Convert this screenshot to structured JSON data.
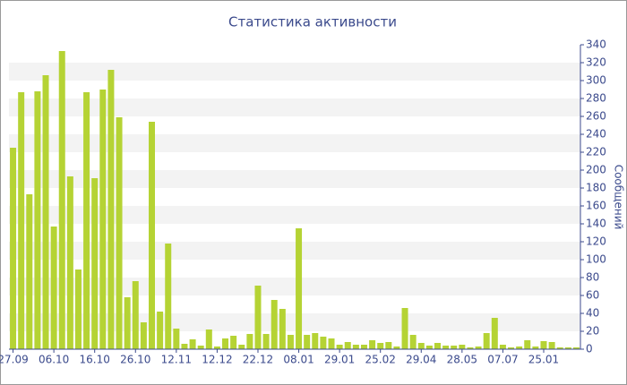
{
  "chart_data": {
    "type": "bar",
    "title": "Статистика активности",
    "y_label": "Сообщений",
    "categories": [
      "27.09",
      null,
      null,
      null,
      null,
      "06.10",
      null,
      null,
      null,
      null,
      "16.10",
      null,
      null,
      null,
      null,
      "26.10",
      null,
      null,
      null,
      null,
      "12.11",
      null,
      null,
      null,
      null,
      "12.12",
      null,
      null,
      null,
      null,
      "22.12",
      null,
      null,
      null,
      null,
      "08.01",
      null,
      null,
      null,
      null,
      "29.01",
      null,
      null,
      null,
      null,
      "25.02",
      null,
      null,
      null,
      null,
      "29.04",
      null,
      null,
      null,
      null,
      "28.05",
      null,
      null,
      null,
      null,
      "07.07",
      null,
      null,
      null,
      null,
      "25.01",
      null,
      null,
      null,
      null
    ],
    "values": [
      225,
      287,
      173,
      288,
      306,
      137,
      333,
      193,
      89,
      287,
      191,
      290,
      312,
      259,
      58,
      76,
      30,
      254,
      42,
      118,
      23,
      6,
      11,
      4,
      22,
      3,
      12,
      15,
      5,
      17,
      71,
      17,
      55,
      45,
      16,
      135,
      16,
      18,
      14,
      12,
      5,
      8,
      5,
      5,
      10,
      7,
      8,
      3,
      46,
      16,
      7,
      4,
      7,
      4,
      4,
      5,
      2,
      3,
      18,
      35,
      5,
      2,
      3,
      10,
      3,
      9,
      8,
      2,
      2,
      2
    ],
    "color": "#b5d334",
    "ylim": [
      0,
      340
    ],
    "yticks": [
      0,
      20,
      40,
      60,
      80,
      100,
      120,
      140,
      160,
      180,
      200,
      220,
      240,
      260,
      280,
      300,
      320,
      340
    ],
    "grid": true
  }
}
